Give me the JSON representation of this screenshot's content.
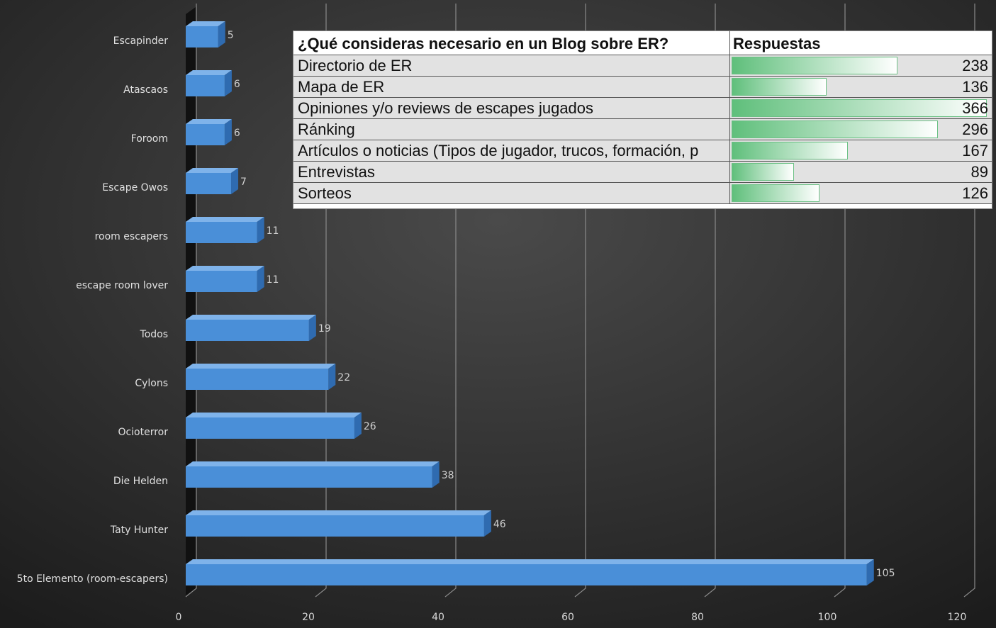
{
  "chart_data": {
    "type": "bar",
    "orientation": "horizontal",
    "categories": [
      "Escapinder",
      "Atascaos",
      "Foroom",
      "Escape Owos",
      "room escapers",
      "escape room lover",
      "Todos",
      "Cylons",
      "Ocioterror",
      "Die Helden",
      "Taty Hunter",
      "5to Elemento (room-escapers)"
    ],
    "values": [
      5,
      6,
      6,
      7,
      11,
      11,
      19,
      22,
      26,
      38,
      46,
      105
    ],
    "color": "#4a8fd8",
    "xlim": [
      0,
      120
    ],
    "xticks": [
      0,
      20,
      40,
      60,
      80,
      100,
      120
    ],
    "grid": true
  },
  "table": {
    "header": [
      "¿Qué consideras necesario en un Blog sobre ER?",
      "Respuestas"
    ],
    "rows": [
      [
        "Directorio de ER",
        238
      ],
      [
        "Mapa de ER",
        136
      ],
      [
        "Opiniones y/o reviews de escapes jugados",
        366
      ],
      [
        "Ránking",
        296
      ],
      [
        "Artículos o noticias (Tipos de jugador, trucos, formación, p",
        167
      ],
      [
        "Entrevistas",
        89
      ],
      [
        "Sorteos",
        126
      ]
    ]
  }
}
